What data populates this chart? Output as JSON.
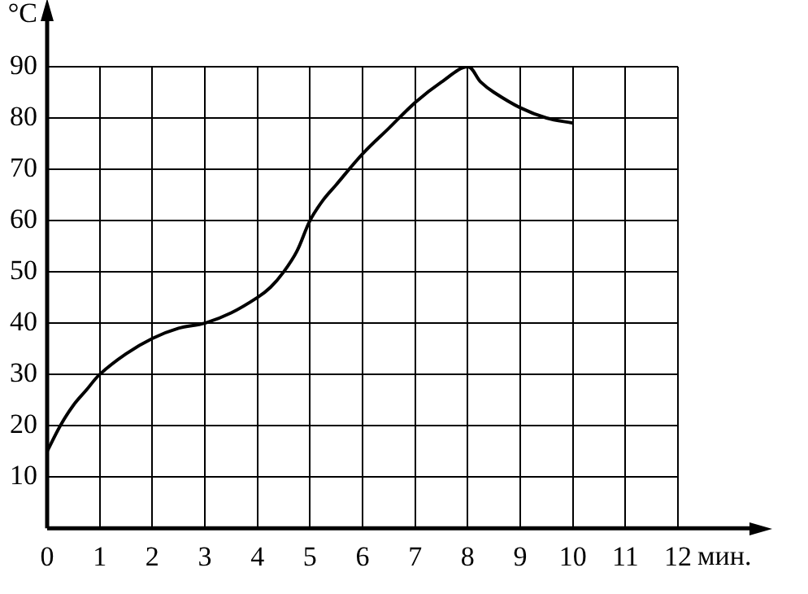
{
  "chart_data": {
    "type": "line",
    "xlabel": "мин.",
    "ylabel": "°C",
    "x": [
      0,
      0.25,
      0.5,
      0.75,
      1,
      1.5,
      2,
      2.5,
      3,
      3.5,
      4,
      4.25,
      4.5,
      4.75,
      5,
      5.25,
      5.5,
      6,
      6.5,
      7,
      7.5,
      8,
      8.25,
      8.5,
      9,
      9.5,
      10
    ],
    "series": [
      {
        "color": "#000000",
        "values": [
          15,
          20,
          24,
          27,
          30,
          34,
          37,
          39,
          40,
          42,
          45,
          47,
          50,
          54,
          60,
          64,
          67,
          73,
          78,
          83,
          87,
          90,
          87,
          85,
          82,
          80,
          79
        ]
      }
    ],
    "xlim": [
      0,
      12
    ],
    "xticks": [
      0,
      1,
      2,
      3,
      4,
      5,
      6,
      7,
      8,
      9,
      10,
      11,
      12
    ],
    "ylim": [
      0,
      90
    ],
    "yticks": [
      {
        "value": 0,
        "label": null
      },
      10,
      20,
      30,
      40,
      50,
      60,
      70,
      80,
      90
    ],
    "grid": true,
    "legend": false,
    "marker": "none",
    "line_style": "solid"
  }
}
